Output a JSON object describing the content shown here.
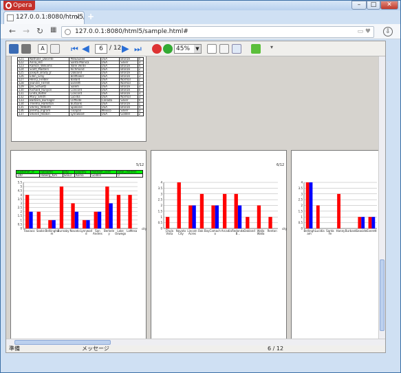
{
  "browser": {
    "menu_label": "Opera",
    "tab_title": "127.0.0.1:8080/html5/sample",
    "url": "127.0.0.1:8080/html5/sample.html#",
    "window_buttons": [
      "–",
      "□",
      "✕"
    ]
  },
  "toolbar": {
    "page_current": "6",
    "page_total": "/ 12",
    "zoom": "45%",
    "icons": [
      "save-icon",
      "print-icon",
      "text-icon",
      "export-icon",
      "first-page-icon",
      "prev-page-icon",
      "next-page-icon",
      "last-page-icon",
      "zoom-out-icon",
      "zoom-in-icon",
      "single-page-icon",
      "two-page-icon",
      "fit-icon",
      "search-icon"
    ]
  },
  "prev_page_table": {
    "rows": [
      [
        "121",
        "Nathalie_Dolorite",
        "Milwaukee",
        "USA",
        "Bronze",
        "0"
      ],
      [
        "122",
        "Anna_Hill",
        "Santa Monica",
        "USA",
        "Silver",
        "3"
      ],
      [
        "123",
        "Ramon_Williams",
        "Valle Verde",
        "USA",
        "Bronze",
        "4"
      ],
      [
        "124",
        "Scott_Masters",
        "Richmond",
        "USA",
        "Bronze",
        "2"
      ],
      [
        "125",
        "Joseph_Brady_Jr.",
        "Oakland",
        "USA",
        "Bronze",
        "5"
      ],
      [
        "126",
        "Ellen_Gray",
        "Bellflower",
        "USA",
        "Bronze",
        "3"
      ],
      [
        "127",
        "Henry_Fielder",
        "Ballard",
        "USA",
        "Normal",
        "2"
      ],
      [
        "128",
        "Jeanine_Ferrell",
        "Everett",
        "USA",
        "Normal",
        "1"
      ],
      [
        "129",
        "Jan_Schuetz",
        "Salem",
        "USA",
        "Bronze",
        "3"
      ],
      [
        "130",
        "Richard_Runyon",
        "Concord",
        "USA",
        "Bronze",
        "0"
      ],
      [
        "131",
        "Linda_Kolter",
        "Concord",
        "USA",
        "Bronze",
        "3"
      ],
      [
        "132",
        "Mary_Smith",
        "Lucidia",
        "USA",
        "Normal",
        "3"
      ],
      [
        "133",
        "Barbara_Burnager",
        "Cliffside",
        "Canada",
        "Silver",
        "0"
      ],
      [
        "134",
        "Thelma_Hamilton",
        "Burbank",
        "USA",
        "Bronze",
        "1"
      ],
      [
        "135",
        "Shirley_Wilbeth",
        "Spokane",
        "USA",
        "Bronze",
        "4"
      ],
      [
        "136",
        "Jeremy_Ingram",
        "Tixapan",
        "Mexico",
        "Silver",
        "3"
      ],
      [
        "137",
        "Sharon_Haskin",
        "Lynnwood",
        "USA",
        "Golden",
        "2"
      ]
    ]
  },
  "page_a": {
    "page_number": "5/12",
    "table": {
      "headers": [
        "customer_id",
        "fullname",
        "city",
        "country",
        "member_card",
        "total_children"
      ],
      "row": [
        "140",
        "Roberg_Kim",
        "Seoul",
        "Korea",
        "Golden",
        "0"
      ]
    }
  },
  "page_b": {
    "page_number": "6/12"
  },
  "statusbar": {
    "left": "準備",
    "message": "メッセージ",
    "page": "6 / 12"
  },
  "chart_data": [
    {
      "type": "bar",
      "categories": [
        "Tlaxiaco",
        "Sooke",
        "Bellingham",
        "Burnaby",
        "Novato",
        "Lyntord",
        "San Andres",
        "Berkeley",
        "Lake Oswego",
        "LaMesa"
      ],
      "category_labels": [
        "Tlaxiaco",
        "Sooke",
        "Belliingha\nm",
        "Burnaby",
        "Novato",
        "Lynnwod\nd",
        "San\nAndres",
        "Berkele\ny",
        "Lake\nOswego",
        "LaMesa"
      ],
      "series": [
        {
          "color": "#ff0000",
          "values": [
            4,
            2,
            1,
            5,
            3,
            1,
            2,
            5,
            4,
            4
          ]
        },
        {
          "color": "#0000ff",
          "values": [
            2,
            0,
            1,
            0,
            2,
            1,
            2,
            3,
            0,
            0
          ]
        }
      ],
      "ylim": [
        0,
        5.5
      ],
      "yticks": [
        "0",
        "0.5",
        "1",
        "1.5",
        "2",
        "2.5",
        "3",
        "3.5",
        "4",
        "4.5",
        "5",
        "5.5"
      ],
      "xlabel": "city"
    },
    {
      "type": "bar",
      "categories": [
        "Chula Vista",
        "Novato City",
        "Lincoln Acres",
        "Oak Bay",
        "Camacho",
        "Arcadia",
        "Redondo Beach",
        "Oakland",
        "Walla Walla",
        "Renton"
      ],
      "category_labels": [
        "Chula\nVista",
        "Novato\nCity",
        "Lincoln\nAcres",
        "Oak Bay",
        "Camach\no",
        "Arcadia",
        "Redondo\nB...",
        "Oakland",
        "Walla\nWalla",
        "Renton"
      ],
      "series": [
        {
          "color": "#ff0000",
          "values": [
            1,
            4,
            2,
            3,
            2,
            3,
            3,
            1,
            2,
            1
          ]
        },
        {
          "color": "#0000ff",
          "values": [
            0,
            0,
            2,
            0,
            2,
            0,
            2,
            0,
            0,
            0
          ]
        }
      ],
      "ylim": [
        0,
        4
      ],
      "yticks": [
        "0",
        "0.5",
        "1",
        "1.5",
        "2",
        "2.5",
        "3",
        "3.5",
        "4"
      ],
      "xlabel": "city"
    },
    {
      "type": "bar",
      "categories": [
        "Bellingham",
        "Lucidia",
        "Santa Fe",
        "Haney",
        "Burbank",
        "Seaside",
        "Everett"
      ],
      "category_labels": [
        "Bellingh\nam",
        "Lucidia",
        "Santa\nFe",
        "Haney",
        "Burbank",
        "Seaside\n",
        "Everett"
      ],
      "series": [
        {
          "color": "#ff0000",
          "values": [
            4,
            2,
            0,
            3,
            0,
            1,
            1
          ]
        },
        {
          "color": "#0000ff",
          "values": [
            4,
            0,
            0,
            0,
            0,
            1,
            1
          ]
        }
      ],
      "ylim": [
        0,
        4
      ],
      "yticks": [
        "0",
        "0.5",
        "1",
        "1.5",
        "2",
        "2.5",
        "3",
        "3.5",
        "4"
      ],
      "xlabel": ""
    }
  ]
}
